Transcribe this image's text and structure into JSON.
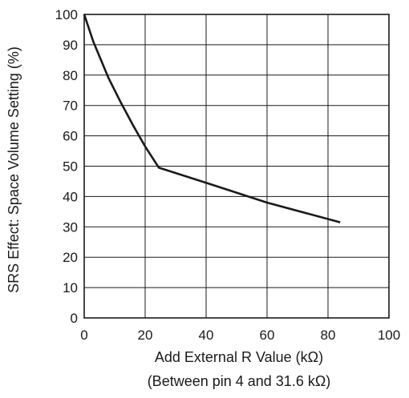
{
  "chart_data": {
    "type": "line",
    "title": "",
    "xlabel": "Add External R Value   (kΩ)",
    "xlabel_sub": "(Between pin 4 and 31.6 kΩ)",
    "ylabel": "SRS Effect: Space Volume Setting (%)",
    "xlim": [
      0,
      100
    ],
    "ylim": [
      0,
      100
    ],
    "x_ticks": [
      0,
      20,
      40,
      60,
      80,
      100
    ],
    "y_ticks": [
      0,
      10,
      20,
      30,
      40,
      50,
      60,
      70,
      80,
      90,
      100
    ],
    "x_tick_labels": [
      "0",
      "20",
      "40",
      "60",
      "80",
      "100"
    ],
    "y_tick_labels": [
      "0",
      "10",
      "20",
      "30",
      "40",
      "50",
      "60",
      "70",
      "80",
      "90",
      "100"
    ],
    "grid": true,
    "series": [
      {
        "x": [
          0,
          3,
          8,
          12,
          16,
          20,
          24.5,
          40,
          60,
          84
        ],
        "y": [
          100,
          91,
          79,
          71,
          63.5,
          56.5,
          49.5,
          44.5,
          38,
          31.5
        ]
      }
    ]
  }
}
